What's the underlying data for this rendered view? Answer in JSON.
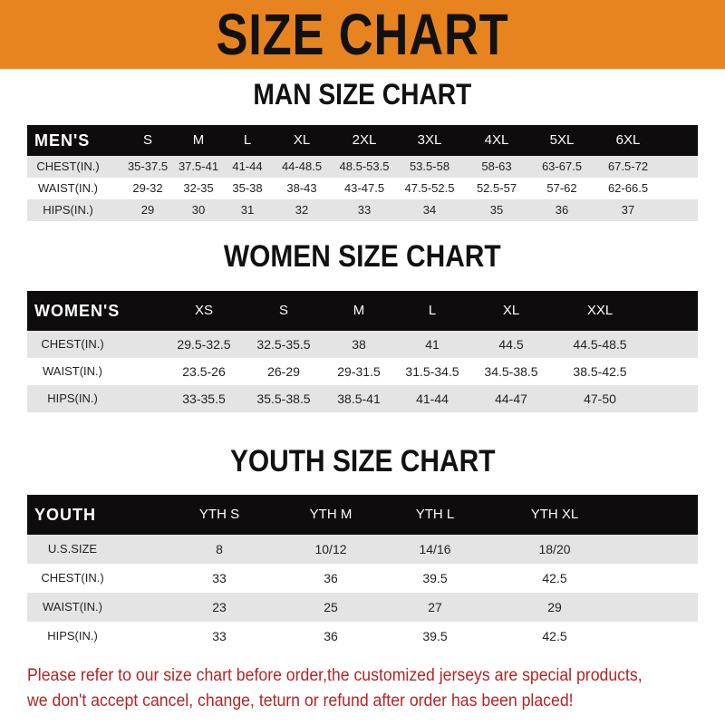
{
  "banner": {
    "title": "SIZE CHART",
    "color": "#e8841f"
  },
  "men": {
    "title": "MAN SIZE CHART",
    "header_label": "MEN'S",
    "sizes": [
      "S",
      "M",
      "L",
      "XL",
      "2XL",
      "3XL",
      "4XL",
      "5XL",
      "6XL"
    ],
    "rows": [
      {
        "label": "CHEST(IN.)",
        "values": [
          "35-37.5",
          "37.5-41",
          "41-44",
          "44-48.5",
          "48.5-53.5",
          "53.5-58",
          "58-63",
          "63-67.5",
          "67.5-72"
        ]
      },
      {
        "label": "WAIST(IN.)",
        "values": [
          "29-32",
          "32-35",
          "35-38",
          "38-43",
          "43-47.5",
          "47.5-52.5",
          "52.5-57",
          "57-62",
          "62-66.5"
        ]
      },
      {
        "label": "HIPS(IN.)",
        "values": [
          "29",
          "30",
          "31",
          "32",
          "33",
          "34",
          "35",
          "36",
          "37"
        ]
      }
    ]
  },
  "women": {
    "title": "WOMEN SIZE CHART",
    "header_label": "WOMEN'S",
    "sizes": [
      "XS",
      "S",
      "M",
      "L",
      "XL",
      "XXL"
    ],
    "rows": [
      {
        "label": "CHEST(IN.)",
        "values": [
          "29.5-32.5",
          "32.5-35.5",
          "38",
          "41",
          "44.5",
          "44.5-48.5"
        ]
      },
      {
        "label": "WAIST(IN.)",
        "values": [
          "23.5-26",
          "26-29",
          "29-31.5",
          "31.5-34.5",
          "34.5-38.5",
          "38.5-42.5"
        ]
      },
      {
        "label": "HIPS(IN.)",
        "values": [
          "33-35.5",
          "35.5-38.5",
          "38.5-41",
          "41-44",
          "44-47",
          "47-50"
        ]
      }
    ]
  },
  "youth": {
    "title": "YOUTH SIZE CHART",
    "header_label": "YOUTH",
    "sizes": [
      "YTH S",
      "YTH M",
      "YTH L",
      "YTH XL"
    ],
    "rows": [
      {
        "label": "U.S.SIZE",
        "values": [
          "8",
          "10/12",
          "14/16",
          "18/20"
        ]
      },
      {
        "label": "CHEST(IN.)",
        "values": [
          "33",
          "36",
          "39.5",
          "42.5"
        ]
      },
      {
        "label": "WAIST(IN.)",
        "values": [
          "23",
          "25",
          "27",
          "29"
        ]
      },
      {
        "label": "HIPS(IN.)",
        "values": [
          "33",
          "36",
          "39.5",
          "42.5"
        ]
      }
    ]
  },
  "notice": {
    "line1": "Please refer to our size chart before order,the customized jerseys are special products,",
    "line2": "we don't accept cancel, change, teturn or refund after order has been placed!",
    "color": "#b42424"
  }
}
